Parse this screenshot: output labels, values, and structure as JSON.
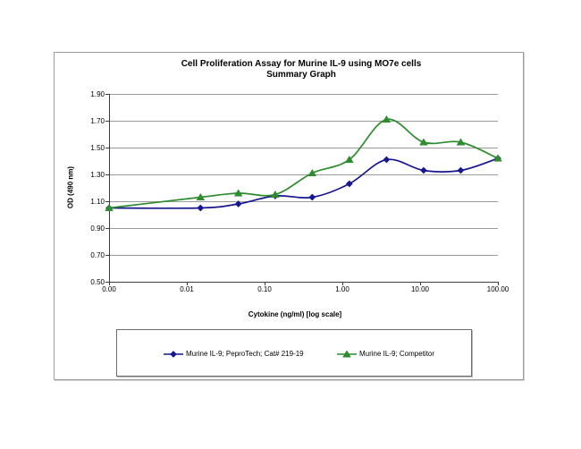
{
  "chart_data": {
    "type": "line",
    "title": "Cell Proliferation Assay for Murine IL-9 using MO7e cells",
    "subtitle": "Summary Graph",
    "xlabel": "Cytokine (ng/ml) [log scale]",
    "ylabel": "OD (490 nm)",
    "x_scale": "log",
    "ylim": [
      0.5,
      1.9
    ],
    "grid": true,
    "legend_position": "bottom",
    "x": [
      0,
      0.015,
      0.046,
      0.137,
      0.41,
      1.23,
      3.7,
      11.1,
      33.3,
      100
    ],
    "x_ticks": [
      {
        "label": "0.00",
        "value": 0.001
      },
      {
        "label": "0.01",
        "value": 0.01
      },
      {
        "label": "0.10",
        "value": 0.1
      },
      {
        "label": "1.00",
        "value": 1
      },
      {
        "label": "10.00",
        "value": 10
      },
      {
        "label": "100.00",
        "value": 100
      }
    ],
    "y_ticks": [
      {
        "label": "1.90",
        "value": 1.9
      },
      {
        "label": "1.70",
        "value": 1.7
      },
      {
        "label": "1.50",
        "value": 1.5
      },
      {
        "label": "1.30",
        "value": 1.3
      },
      {
        "label": "1.10",
        "value": 1.1
      },
      {
        "label": "0.90",
        "value": 0.9
      },
      {
        "label": "0.70",
        "value": 0.7
      },
      {
        "label": "0.50",
        "value": 0.5
      }
    ],
    "series": [
      {
        "name": "Murine IL-9; PeproTech; Cat# 219-19",
        "color": "#16168F",
        "marker": "diamond",
        "values": [
          1.05,
          1.05,
          1.08,
          1.14,
          1.13,
          1.23,
          1.41,
          1.33,
          1.33,
          1.42
        ]
      },
      {
        "name": "Murine IL-9; Competitor",
        "color": "#2E8B2E",
        "marker": "triangle",
        "values": [
          1.05,
          1.13,
          1.16,
          1.15,
          1.31,
          1.41,
          1.71,
          1.54,
          1.54,
          1.42
        ]
      }
    ],
    "colors": {
      "gridline": "#9b9b9b",
      "axis": "#3c3c3c"
    }
  }
}
